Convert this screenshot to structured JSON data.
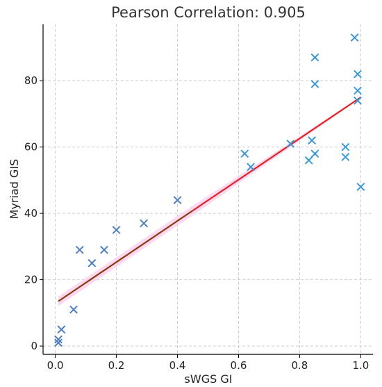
{
  "chart_data": {
    "type": "scatter",
    "title": "Pearson Correlation: 0.905",
    "xlabel": "sWGS GI",
    "ylabel": "Myriad GIS",
    "xlim": [
      -0.04,
      1.04
    ],
    "ylim": [
      -2.5,
      97
    ],
    "xticks": [
      "0.0",
      "0.2",
      "0.4",
      "0.6",
      "0.8",
      "1.0"
    ],
    "yticks": [
      "0",
      "20",
      "40",
      "60",
      "80"
    ],
    "grid": true,
    "marker": "x",
    "points": [
      {
        "x": 0.01,
        "y": 1
      },
      {
        "x": 0.01,
        "y": 2
      },
      {
        "x": 0.02,
        "y": 5
      },
      {
        "x": 0.06,
        "y": 11
      },
      {
        "x": 0.08,
        "y": 29
      },
      {
        "x": 0.12,
        "y": 25
      },
      {
        "x": 0.16,
        "y": 29
      },
      {
        "x": 0.2,
        "y": 35
      },
      {
        "x": 0.29,
        "y": 37
      },
      {
        "x": 0.4,
        "y": 44
      },
      {
        "x": 0.62,
        "y": 58
      },
      {
        "x": 0.64,
        "y": 54
      },
      {
        "x": 0.77,
        "y": 61
      },
      {
        "x": 0.83,
        "y": 56
      },
      {
        "x": 0.84,
        "y": 62
      },
      {
        "x": 0.85,
        "y": 58
      },
      {
        "x": 0.85,
        "y": 87
      },
      {
        "x": 0.85,
        "y": 79
      },
      {
        "x": 0.95,
        "y": 60
      },
      {
        "x": 0.95,
        "y": 57
      },
      {
        "x": 0.98,
        "y": 93
      },
      {
        "x": 0.99,
        "y": 82
      },
      {
        "x": 0.99,
        "y": 77
      },
      {
        "x": 0.99,
        "y": 74
      },
      {
        "x": 1.0,
        "y": 48
      }
    ],
    "regression_line": {
      "x": [
        0.01,
        1.0
      ],
      "y": [
        13.5,
        75
      ]
    },
    "colors": {
      "marker": "#4f7fc0",
      "marker_light": "#3a9ad9",
      "regression": "#e62020",
      "regression_overlap": "#8b3a0c",
      "confidence_band": "#ffd0ee"
    }
  }
}
